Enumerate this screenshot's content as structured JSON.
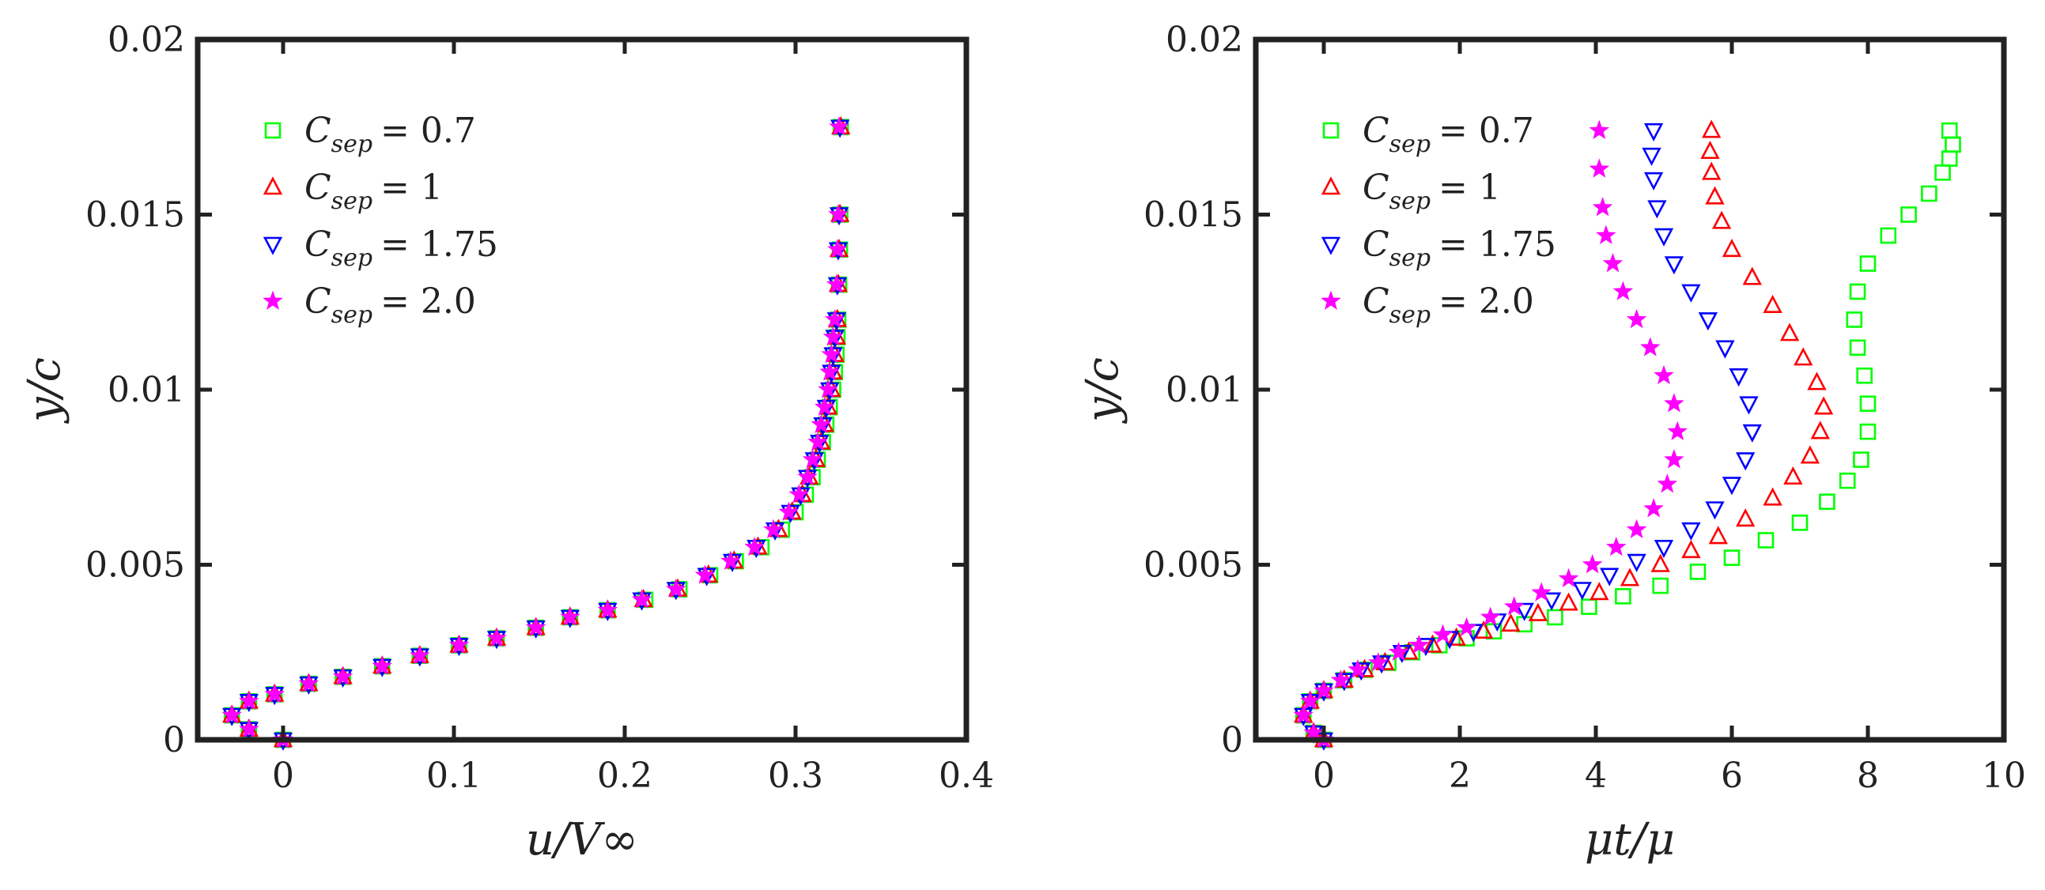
{
  "colors": {
    "axis": "#222222",
    "series": [
      "#00ff00",
      "#ff0000",
      "#0000ff",
      "#ff00ff"
    ]
  },
  "chart_data": [
    {
      "type": "scatter",
      "panel": "left",
      "xlabel": "u/V∞",
      "ylabel": "y/c",
      "xlim": [
        -0.05,
        0.4
      ],
      "ylim": [
        0,
        0.02
      ],
      "xticks": [
        0,
        0.1,
        0.2,
        0.3,
        0.4
      ],
      "xtick_labels": [
        "0",
        "0.1",
        "0.2",
        "0.3",
        "0.4"
      ],
      "yticks": [
        0,
        0.005,
        0.01,
        0.015,
        0.02
      ],
      "ytick_labels": [
        "0",
        "0.005",
        "0.01",
        "0.015",
        "0.02"
      ],
      "legend_position": "top-left",
      "series": [
        {
          "name": "C_sep = 0.7",
          "legend_symbol": "C",
          "legend_sub": "sep",
          "legend_value": "= 0.7",
          "marker": "square",
          "color": "#00ff00",
          "x": [
            0.0,
            -0.02,
            -0.03,
            -0.02,
            -0.005,
            0.015,
            0.035,
            0.058,
            0.08,
            0.103,
            0.125,
            0.148,
            0.168,
            0.19,
            0.212,
            0.232,
            0.25,
            0.265,
            0.28,
            0.292,
            0.3,
            0.306,
            0.31,
            0.313,
            0.316,
            0.318,
            0.32,
            0.322,
            0.323,
            0.324,
            0.3245,
            0.325,
            0.3255,
            0.326,
            0.3262,
            0.3265
          ],
          "y": [
            0.0,
            0.0003,
            0.0007,
            0.0011,
            0.0013,
            0.0016,
            0.0018,
            0.0021,
            0.0024,
            0.0027,
            0.0029,
            0.0032,
            0.0035,
            0.0037,
            0.004,
            0.0043,
            0.0047,
            0.0051,
            0.0055,
            0.006,
            0.0065,
            0.007,
            0.0075,
            0.008,
            0.0085,
            0.009,
            0.0095,
            0.01,
            0.0105,
            0.011,
            0.0115,
            0.012,
            0.013,
            0.014,
            0.015,
            0.0175
          ]
        },
        {
          "name": "C_sep = 1",
          "legend_symbol": "C",
          "legend_sub": "sep",
          "legend_value": "= 1",
          "marker": "triangle-up",
          "color": "#ff0000",
          "x": [
            0.0,
            -0.02,
            -0.03,
            -0.02,
            -0.005,
            0.015,
            0.035,
            0.058,
            0.08,
            0.103,
            0.125,
            0.148,
            0.168,
            0.19,
            0.211,
            0.231,
            0.249,
            0.264,
            0.278,
            0.29,
            0.298,
            0.304,
            0.308,
            0.312,
            0.315,
            0.317,
            0.319,
            0.321,
            0.322,
            0.323,
            0.324,
            0.3245,
            0.325,
            0.3255,
            0.326,
            0.3265
          ],
          "y": [
            0.0,
            0.0003,
            0.0007,
            0.0011,
            0.0013,
            0.0016,
            0.0018,
            0.0021,
            0.0024,
            0.0027,
            0.0029,
            0.0032,
            0.0035,
            0.0037,
            0.004,
            0.0043,
            0.0047,
            0.0051,
            0.0055,
            0.006,
            0.0065,
            0.007,
            0.0075,
            0.008,
            0.0085,
            0.009,
            0.0095,
            0.01,
            0.0105,
            0.011,
            0.0115,
            0.012,
            0.013,
            0.014,
            0.015,
            0.0175
          ]
        },
        {
          "name": "C_sep = 1.75",
          "legend_symbol": "C",
          "legend_sub": "sep",
          "legend_value": "= 1.75",
          "marker": "triangle-down",
          "color": "#0000ff",
          "x": [
            0.0,
            -0.02,
            -0.03,
            -0.02,
            -0.005,
            0.015,
            0.035,
            0.058,
            0.08,
            0.103,
            0.125,
            0.148,
            0.168,
            0.19,
            0.21,
            0.23,
            0.248,
            0.263,
            0.277,
            0.288,
            0.297,
            0.303,
            0.307,
            0.311,
            0.314,
            0.316,
            0.318,
            0.32,
            0.321,
            0.322,
            0.323,
            0.324,
            0.3245,
            0.325,
            0.3255,
            0.326
          ],
          "y": [
            0.0,
            0.0003,
            0.0007,
            0.0011,
            0.0013,
            0.0016,
            0.0018,
            0.0021,
            0.0024,
            0.0027,
            0.0029,
            0.0032,
            0.0035,
            0.0037,
            0.004,
            0.0043,
            0.0047,
            0.0051,
            0.0055,
            0.006,
            0.0065,
            0.007,
            0.0075,
            0.008,
            0.0085,
            0.009,
            0.0095,
            0.01,
            0.0105,
            0.011,
            0.0115,
            0.012,
            0.013,
            0.014,
            0.015,
            0.0175
          ]
        },
        {
          "name": "C_sep = 2.0",
          "legend_symbol": "C",
          "legend_sub": "sep",
          "legend_value": "= 2.0",
          "marker": "star",
          "color": "#ff00ff",
          "x": [
            0.0,
            -0.02,
            -0.03,
            -0.02,
            -0.005,
            0.015,
            0.035,
            0.058,
            0.08,
            0.103,
            0.125,
            0.148,
            0.168,
            0.19,
            0.21,
            0.23,
            0.247,
            0.262,
            0.276,
            0.287,
            0.296,
            0.302,
            0.307,
            0.31,
            0.313,
            0.315,
            0.317,
            0.319,
            0.32,
            0.321,
            0.322,
            0.323,
            0.324,
            0.3245,
            0.325,
            0.3255
          ],
          "y": [
            0.0,
            0.0003,
            0.0007,
            0.0011,
            0.0013,
            0.0016,
            0.0018,
            0.0021,
            0.0024,
            0.0027,
            0.0029,
            0.0032,
            0.0035,
            0.0037,
            0.004,
            0.0043,
            0.0047,
            0.0051,
            0.0055,
            0.006,
            0.0065,
            0.007,
            0.0075,
            0.008,
            0.0085,
            0.009,
            0.0095,
            0.01,
            0.0105,
            0.011,
            0.0115,
            0.012,
            0.013,
            0.014,
            0.015,
            0.0175
          ]
        }
      ]
    },
    {
      "type": "scatter",
      "panel": "right",
      "xlabel": "μt/μ",
      "ylabel": "y/c",
      "xlim": [
        -1,
        10
      ],
      "ylim": [
        0,
        0.02
      ],
      "xticks": [
        0,
        2,
        4,
        6,
        8,
        10
      ],
      "xtick_labels": [
        "0",
        "2",
        "4",
        "6",
        "8",
        "10"
      ],
      "yticks": [
        0,
        0.005,
        0.01,
        0.015,
        0.02
      ],
      "ytick_labels": [
        "0",
        "0.005",
        "0.01",
        "0.015",
        "0.02"
      ],
      "legend_position": "top-left",
      "series": [
        {
          "name": "C_sep = 0.7",
          "legend_symbol": "C",
          "legend_sub": "sep",
          "legend_value": "= 0.7",
          "marker": "square",
          "color": "#00ff00",
          "x": [
            0.0,
            -0.15,
            -0.3,
            -0.2,
            0.0,
            0.3,
            0.6,
            0.95,
            1.3,
            1.7,
            2.1,
            2.5,
            2.95,
            3.4,
            3.9,
            4.4,
            4.95,
            5.5,
            6.0,
            6.5,
            7.0,
            7.4,
            7.7,
            7.9,
            8.0,
            8.0,
            7.95,
            7.85,
            7.8,
            7.85,
            8.0,
            8.3,
            8.6,
            8.9,
            9.1,
            9.2,
            9.25,
            9.2
          ],
          "y": [
            0.0,
            0.0002,
            0.0007,
            0.0011,
            0.0014,
            0.0017,
            0.002,
            0.0022,
            0.0025,
            0.0027,
            0.0029,
            0.0031,
            0.0033,
            0.0035,
            0.0038,
            0.0041,
            0.0044,
            0.0048,
            0.0052,
            0.0057,
            0.0062,
            0.0068,
            0.0074,
            0.008,
            0.0088,
            0.0096,
            0.0104,
            0.0112,
            0.012,
            0.0128,
            0.0136,
            0.0144,
            0.015,
            0.0156,
            0.0162,
            0.0166,
            0.017,
            0.0174
          ]
        },
        {
          "name": "C_sep = 1",
          "legend_symbol": "C",
          "legend_sub": "sep",
          "legend_value": "= 1",
          "marker": "triangle-up",
          "color": "#ff0000",
          "x": [
            0.0,
            -0.15,
            -0.3,
            -0.2,
            0.0,
            0.3,
            0.6,
            0.9,
            1.25,
            1.6,
            1.95,
            2.35,
            2.75,
            3.15,
            3.6,
            4.05,
            4.5,
            4.95,
            5.4,
            5.8,
            6.2,
            6.6,
            6.9,
            7.15,
            7.3,
            7.35,
            7.25,
            7.05,
            6.85,
            6.6,
            6.3,
            6.0,
            5.85,
            5.75,
            5.7,
            5.68,
            5.7
          ],
          "y": [
            0.0,
            0.0002,
            0.0007,
            0.0011,
            0.0014,
            0.0017,
            0.002,
            0.0022,
            0.0025,
            0.0027,
            0.0029,
            0.0031,
            0.0033,
            0.0036,
            0.0039,
            0.0042,
            0.0046,
            0.005,
            0.0054,
            0.0058,
            0.0063,
            0.0069,
            0.0075,
            0.0081,
            0.0088,
            0.0095,
            0.0102,
            0.0109,
            0.0116,
            0.0124,
            0.0132,
            0.014,
            0.0148,
            0.0155,
            0.0162,
            0.0168,
            0.0174
          ]
        },
        {
          "name": "C_sep = 1.75",
          "legend_symbol": "C",
          "legend_sub": "sep",
          "legend_value": "= 1.75",
          "marker": "triangle-down",
          "color": "#0000ff",
          "x": [
            0.0,
            -0.15,
            -0.3,
            -0.2,
            0.0,
            0.3,
            0.55,
            0.85,
            1.15,
            1.5,
            1.85,
            2.2,
            2.55,
            2.95,
            3.35,
            3.8,
            4.2,
            4.6,
            5.0,
            5.4,
            5.75,
            6.0,
            6.2,
            6.3,
            6.25,
            6.1,
            5.9,
            5.65,
            5.4,
            5.15,
            5.0,
            4.9,
            4.85,
            4.82,
            4.85
          ],
          "y": [
            0.0,
            0.0002,
            0.0007,
            0.0011,
            0.0014,
            0.0017,
            0.002,
            0.0022,
            0.0025,
            0.0027,
            0.0029,
            0.0031,
            0.0034,
            0.0037,
            0.004,
            0.0043,
            0.0047,
            0.0051,
            0.0055,
            0.006,
            0.0066,
            0.0073,
            0.008,
            0.0088,
            0.0096,
            0.0104,
            0.0112,
            0.012,
            0.0128,
            0.0136,
            0.0144,
            0.0152,
            0.016,
            0.0167,
            0.0174
          ]
        },
        {
          "name": "C_sep = 2.0",
          "legend_symbol": "C",
          "legend_sub": "sep",
          "legend_value": "= 2.0",
          "marker": "star",
          "color": "#ff00ff",
          "x": [
            0.0,
            -0.15,
            -0.3,
            -0.2,
            0.0,
            0.25,
            0.5,
            0.8,
            1.1,
            1.4,
            1.75,
            2.1,
            2.45,
            2.8,
            3.2,
            3.6,
            3.95,
            4.3,
            4.6,
            4.85,
            5.05,
            5.15,
            5.2,
            5.15,
            5.0,
            4.8,
            4.6,
            4.4,
            4.25,
            4.15,
            4.1,
            4.05,
            4.05
          ],
          "y": [
            0.0,
            0.0002,
            0.0007,
            0.0011,
            0.0014,
            0.0017,
            0.002,
            0.0022,
            0.0025,
            0.0027,
            0.003,
            0.0032,
            0.0035,
            0.0038,
            0.0042,
            0.0046,
            0.005,
            0.0055,
            0.006,
            0.0066,
            0.0073,
            0.008,
            0.0088,
            0.0096,
            0.0104,
            0.0112,
            0.012,
            0.0128,
            0.0136,
            0.0144,
            0.0152,
            0.0163,
            0.0174
          ]
        }
      ]
    }
  ]
}
